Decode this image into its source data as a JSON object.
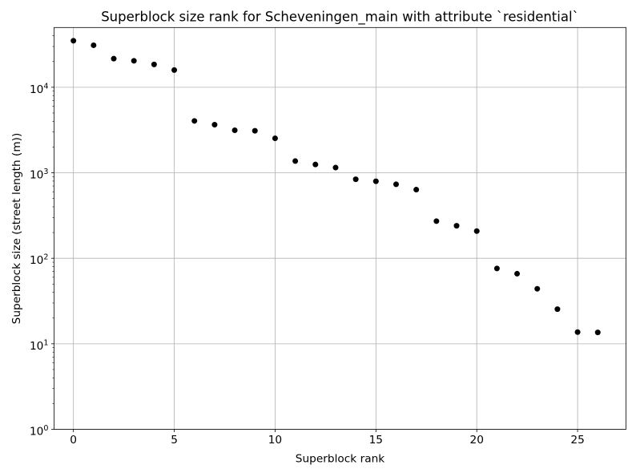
{
  "chart_data": {
    "type": "scatter",
    "title": "Superblock size rank for Scheveningen_main with attribute `residential`",
    "xlabel": "Superblock rank",
    "ylabel": "Superblock size (street length (m))",
    "x": [
      0,
      1,
      2,
      3,
      4,
      5,
      6,
      7,
      8,
      9,
      10,
      11,
      12,
      13,
      14,
      15,
      16,
      17,
      18,
      19,
      20,
      21,
      22,
      23,
      24,
      25,
      26
    ],
    "y": [
      35000,
      31000,
      21600,
      20400,
      18500,
      15900,
      4040,
      3650,
      3140,
      3100,
      2530,
      1370,
      1250,
      1150,
      840,
      795,
      734,
      635,
      272,
      240,
      208,
      76,
      66,
      44,
      25.4,
      13.7,
      13.6
    ],
    "xscale": "linear",
    "yscale": "log",
    "xlim": [
      -0.96,
      27.4
    ],
    "ylim": [
      1,
      50000
    ],
    "xticks": [
      0,
      5,
      10,
      15,
      20,
      25
    ],
    "ytick_exponents": [
      0,
      1,
      2,
      3,
      4
    ],
    "grid": true,
    "legend": "none",
    "marker": {
      "shape": "circle",
      "color": "#000000",
      "radius_px": 3.5
    },
    "colors": {
      "grid": "#b0b0b0",
      "spine": "#000000",
      "text": "#000000",
      "background": "#ffffff"
    }
  }
}
